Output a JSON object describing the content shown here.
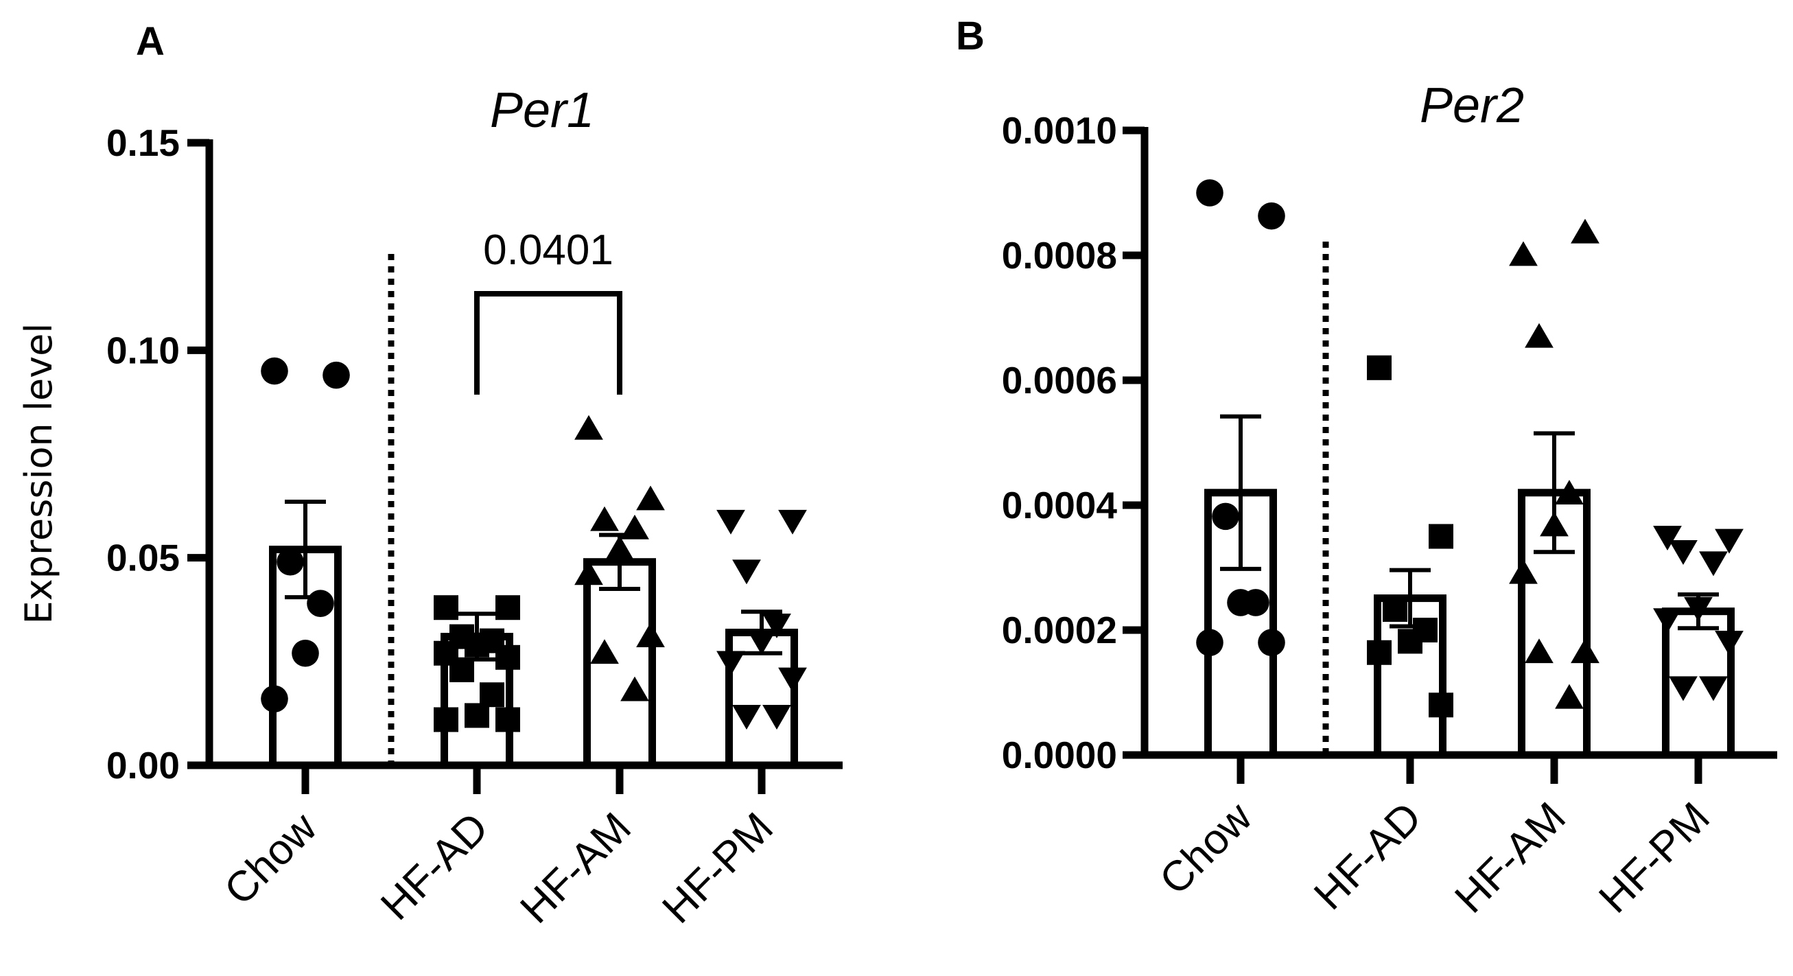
{
  "chart_data": [
    {
      "panel": "A",
      "type": "bar",
      "title": "Per1",
      "xlabel": "",
      "ylabel": "Expression level",
      "ylim": [
        0,
        0.15
      ],
      "yticks": [
        0.0,
        0.05,
        0.1,
        0.15
      ],
      "ytick_labels": [
        "0.00",
        "0.05",
        "0.10",
        "0.15"
      ],
      "categories": [
        "Chow",
        "HF-AD",
        "HF-AM",
        "HF-PM"
      ],
      "markers": [
        "circle",
        "square",
        "triangle-up",
        "triangle-down"
      ],
      "means": [
        0.052,
        0.031,
        0.049,
        0.032
      ],
      "sem": [
        0.0115,
        0.0055,
        0.0065,
        0.005
      ],
      "points": [
        [
          0.095,
          0.094,
          0.049,
          0.039,
          0.027,
          0.016
        ],
        [
          0.038,
          0.038,
          0.031,
          0.03,
          0.029,
          0.027,
          0.026,
          0.023,
          0.017,
          0.012,
          0.011,
          0.011
        ],
        [
          0.081,
          0.064,
          0.059,
          0.057,
          0.052,
          0.046,
          0.031,
          0.027,
          0.018
        ],
        [
          0.059,
          0.059,
          0.047,
          0.034,
          0.03,
          0.025,
          0.021,
          0.012,
          0.012
        ]
      ],
      "significance": {
        "from": "HF-AD",
        "to": "HF-AM",
        "label": "0.0401"
      },
      "divider_after": "Chow"
    },
    {
      "panel": "B",
      "type": "bar",
      "title": "Per2",
      "xlabel": "",
      "ylabel": "",
      "ylim": [
        0,
        0.001
      ],
      "yticks": [
        0.0,
        0.0002,
        0.0004,
        0.0006,
        0.0008,
        0.001
      ],
      "ytick_labels": [
        "0.0000",
        "0.0002",
        "0.0004",
        "0.0006",
        "0.0008",
        "0.0010"
      ],
      "categories": [
        "Chow",
        "HF-AD",
        "HF-AM",
        "HF-PM"
      ],
      "markers": [
        "circle",
        "square",
        "triangle-up",
        "triangle-down"
      ],
      "means": [
        0.00042,
        0.000251,
        0.00042,
        0.00023
      ],
      "sem": [
        0.000122,
        4.5e-05,
        9.5e-05,
        2.7e-05
      ],
      "points": [
        [
          0.0009,
          0.000863,
          0.000382,
          0.000244,
          0.000244,
          0.00018,
          0.00018
        ],
        [
          0.00062,
          0.00035,
          0.000233,
          0.0002,
          0.000182,
          0.000164,
          8e-05
        ],
        [
          0.0008,
          0.000836,
          0.000669,
          0.000418,
          0.000367,
          0.000291,
          0.000164,
          0.000164,
          9.1e-05
        ],
        [
          0.00035,
          0.000345,
          0.000327,
          0.000309,
          0.000236,
          0.000218,
          0.000182,
          0.000109,
          0.000109
        ]
      ],
      "significance": null,
      "divider_after": "Chow"
    }
  ]
}
